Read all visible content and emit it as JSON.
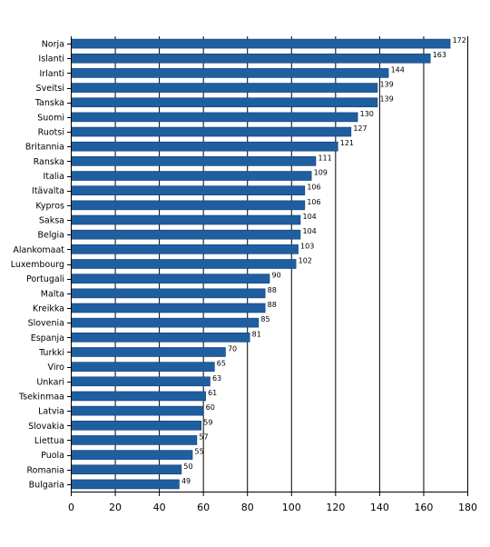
{
  "chart_data": {
    "type": "bar",
    "orientation": "horizontal",
    "categories": [
      "Norja",
      "Islanti",
      "Irlanti",
      "Sveitsi",
      "Tanska",
      "Suomi",
      "Ruotsi",
      "Britannia",
      "Ranska",
      "Italia",
      "Itävalta",
      "Kypros",
      "Saksa",
      "Belgia",
      "Alankomaat",
      "Luxembourg",
      "Portugali",
      "Malta",
      "Kreikka",
      "Slovenia",
      "Espanja",
      "Turkki",
      "Viro",
      "Unkari",
      "Tsekinmaa",
      "Latvia",
      "Slovakia",
      "Liettua",
      "Puola",
      "Romania",
      "Bulgaria"
    ],
    "values": [
      172,
      163,
      144,
      139,
      139,
      130,
      127,
      121,
      111,
      109,
      106,
      106,
      104,
      104,
      103,
      102,
      90,
      88,
      88,
      85,
      81,
      70,
      65,
      63,
      61,
      60,
      59,
      57,
      55,
      50,
      49
    ],
    "xlim": [
      0,
      180
    ],
    "xticks": [
      0,
      20,
      40,
      60,
      80,
      100,
      120,
      140,
      160,
      180
    ],
    "grid": true,
    "legend": "none",
    "bar_color": "#1f5fa0"
  }
}
